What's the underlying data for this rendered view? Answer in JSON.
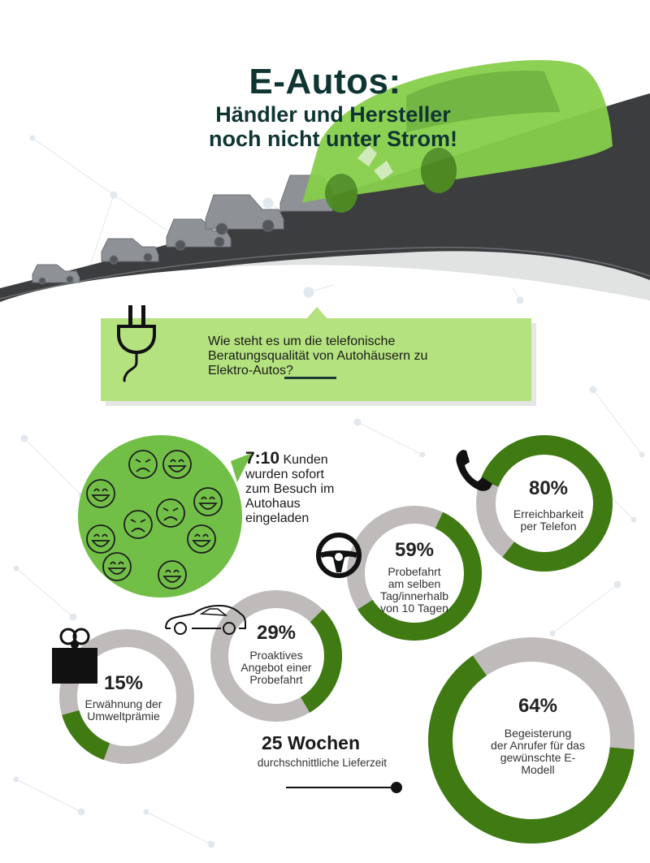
{
  "header": {
    "title": "E-Autos:",
    "subtitle_line1": "Händler und Hersteller",
    "subtitle_line2": "noch nicht unter Strom!"
  },
  "question": {
    "line1": "Wie steht es um die telefonische",
    "line2": "Beratungsqualität von Autohäusern zu",
    "line3": "Elektro-Autos?",
    "icon": "plug-icon"
  },
  "kunden": {
    "ratio": "7:10",
    "word": "Kunden",
    "line2": "wurden sofort",
    "line3": "zum Besuch im",
    "line4": "Autohaus",
    "line5": "eingeladen",
    "icon": "faces-icon",
    "happy": 7,
    "total": 10
  },
  "stats": [
    {
      "id": "telefon",
      "value": 80,
      "pct": "80%",
      "label1": "Erreichbarkeit",
      "label2": "per Telefon",
      "icon": "phone-icon"
    },
    {
      "id": "probefahrt",
      "value": 59,
      "pct": "59%",
      "label1": "Probefahrt",
      "label2": "am selben",
      "label3": "Tag/innerhalb",
      "label4": "von 10 Tagen",
      "icon": "steering-wheel-icon"
    },
    {
      "id": "angebot",
      "value": 29,
      "pct": "29%",
      "label1": "Proaktives",
      "label2": "Angebot einer",
      "label3": "Probefahrt",
      "icon": "car-icon"
    },
    {
      "id": "umwelt",
      "value": 15,
      "pct": "15%",
      "label1": "Erwähnung der",
      "label2": "Umweltprämie",
      "icon": "gift-icon"
    },
    {
      "id": "begeisterung",
      "value": 64,
      "pct": "64%",
      "label1": "Begeisterung",
      "label2": "der Anrufer für das",
      "label3": "gewünschte E-",
      "label4": "Modell"
    }
  ],
  "delivery": {
    "weeks": "25 Wochen",
    "label": "durchschnittliche Lieferzeit"
  },
  "colors": {
    "green_dark": "#3f7a12",
    "green_light": "#b4e27f",
    "green_bubble": "#72bf48",
    "gray_ring": "#c0bbbb",
    "title": "#0f3533"
  }
}
